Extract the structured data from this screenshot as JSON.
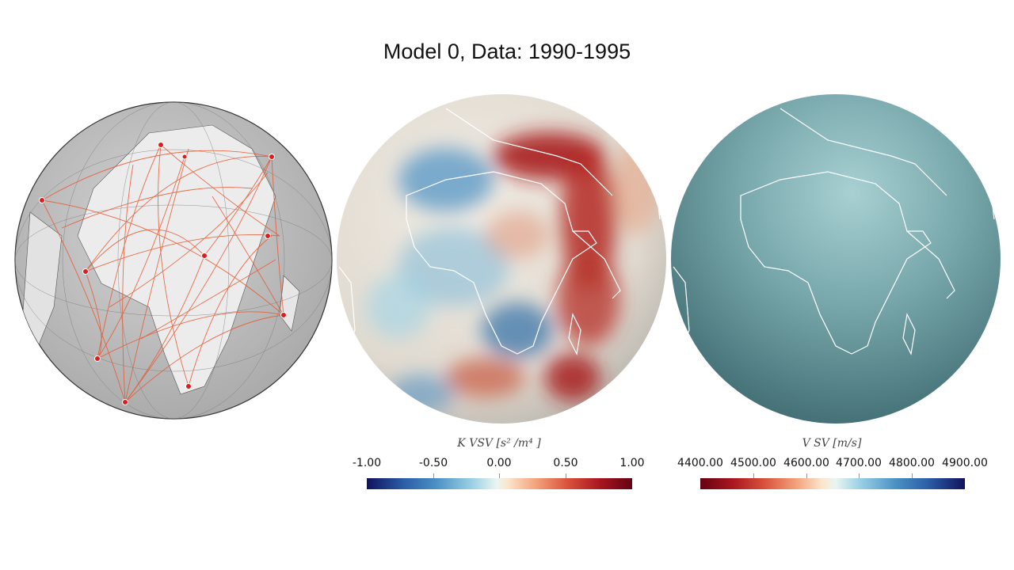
{
  "title": "Model 0, Data: 1990-1995",
  "colorbars": {
    "kernel": {
      "label": "K_{VSV} [s^2 /m^4 ]",
      "label_display": "K VSV  [s² /m⁴ ]",
      "ticks": [
        "-1.00",
        "-0.50",
        "0.00",
        "0.50",
        "1.00"
      ],
      "colormap": "blue-white-red (RdBu reversed)"
    },
    "velocity": {
      "label": "V_{SV} [m/s]",
      "label_display": "V SV  [m/s]",
      "ticks": [
        "4400.00",
        "4500.00",
        "4600.00",
        "4700.00",
        "4800.00",
        "4900.00"
      ],
      "colormap": "red-white-blue (RdBu)"
    }
  },
  "colors": {
    "ray_paths": "#e8562e",
    "station_marker": "#d81e1e",
    "globe_gray": "#cfcfcf",
    "velocity_globe": "#5a8a8e",
    "coastline": "#ffffff"
  },
  "icons": [
    "globe-ray-paths",
    "globe-sensitivity-kernel",
    "globe-velocity-model"
  ]
}
